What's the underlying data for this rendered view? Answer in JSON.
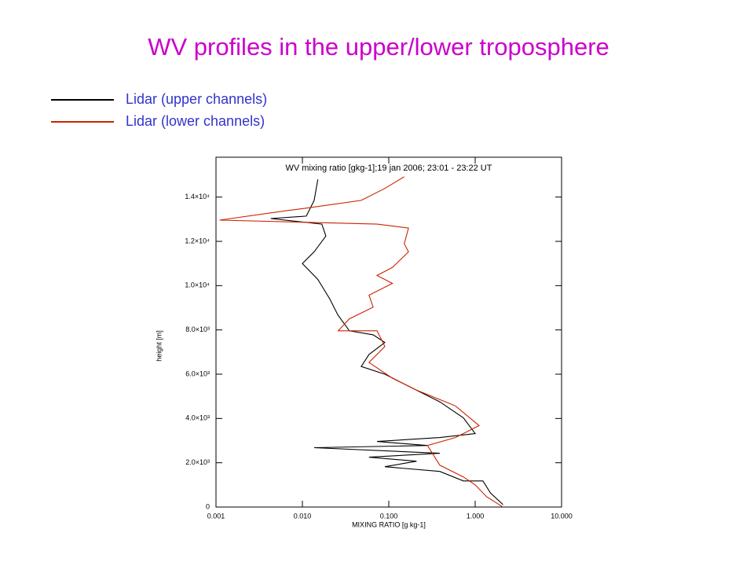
{
  "title": "WV profiles in the upper/lower troposphere",
  "chart_data": {
    "type": "line",
    "title": "WV mixing ratio [gkg-1];19 jan 2006;  23:01 - 23:22 UT",
    "xlabel": "MIXING RATIO [g kg-1]",
    "ylabel": "height [m]",
    "xscale": "log",
    "xlim": [
      0.001,
      10
    ],
    "ylim": [
      0,
      15800
    ],
    "xticks": [
      {
        "value": 0.001,
        "label": "0.001"
      },
      {
        "value": 0.01,
        "label": "0.010"
      },
      {
        "value": 0.1,
        "label": "0.100"
      },
      {
        "value": 1,
        "label": "1.000"
      },
      {
        "value": 10,
        "label": "10.000"
      }
    ],
    "yticks": [
      0,
      {
        "value": 2000,
        "label": "2.0×10³"
      },
      {
        "value": 4000,
        "label": "4.0×10³"
      },
      {
        "value": 6000,
        "label": "6.0×10³"
      },
      {
        "value": 8000,
        "label": "8.0×10³"
      },
      {
        "value": 10000,
        "label": "1.0×10⁴"
      },
      {
        "value": 12000,
        "label": "1.2×10⁴"
      },
      {
        "value": 14000,
        "label": "1.4×10⁴"
      }
    ],
    "series": [
      {
        "name": "Lidar (upper channels)",
        "color": "#000000",
        "x": [
          0.0151,
          0.0137,
          0.0111,
          0.0043,
          0.0168,
          0.0187,
          0.0137,
          0.01,
          0.0151,
          0.0208,
          0.0257,
          0.035,
          0.066,
          0.09,
          0.059,
          0.048,
          0.09,
          0.169,
          0.39,
          0.73,
          1.0,
          0.39,
          0.073,
          0.28,
          0.0137,
          0.39,
          0.059,
          0.21,
          0.09,
          0.39,
          0.73,
          1.23,
          1.5,
          2.1
        ],
        "values": [
          14800,
          13850,
          13140,
          13030,
          12780,
          12240,
          11530,
          11000,
          10280,
          9390,
          8680,
          7960,
          7780,
          7430,
          6890,
          6350,
          6000,
          5460,
          4750,
          4030,
          3320,
          3140,
          2960,
          2780,
          2680,
          2430,
          2250,
          2070,
          1820,
          1610,
          1180,
          1180,
          640,
          110
        ]
      },
      {
        "name": "Lidar (lower channels)",
        "color": "#cc2200",
        "x": [
          0.151,
          0.09,
          0.048,
          0.011,
          0.0066,
          0.0011,
          0.073,
          0.169,
          0.151,
          0.169,
          0.11,
          0.073,
          0.11,
          0.059,
          0.066,
          0.035,
          0.026,
          0.073,
          0.09,
          0.059,
          0.11,
          0.21,
          0.59,
          1.11,
          0.59,
          0.28,
          0.39,
          0.73,
          1.0,
          1.36,
          2.1
        ],
        "values": [
          14920,
          14390,
          13850,
          13500,
          13390,
          12960,
          12780,
          12600,
          11890,
          11530,
          10820,
          10460,
          10100,
          9570,
          9030,
          8500,
          7960,
          7960,
          7250,
          6530,
          5820,
          5280,
          4570,
          3680,
          3140,
          2780,
          1890,
          1360,
          1000,
          460,
          0
        ]
      }
    ]
  }
}
